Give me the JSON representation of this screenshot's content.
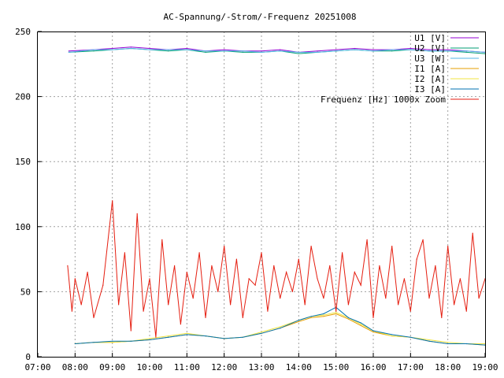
{
  "chart_data": {
    "type": "line",
    "title": "AC-Spannung/-Strom/-Frequenz 20251008",
    "xlabel": "",
    "ylabel": "",
    "xlim": [
      "07:00",
      "19:00"
    ],
    "ylim": [
      0,
      250
    ],
    "xticks": [
      "07:00",
      "08:00",
      "09:00",
      "10:00",
      "11:00",
      "12:00",
      "13:00",
      "14:00",
      "15:00",
      "16:00",
      "17:00",
      "18:00",
      "19:00"
    ],
    "yticks": [
      "0",
      "50",
      "100",
      "150",
      "200",
      "250"
    ],
    "grid": true,
    "legend_position": "top-right",
    "series": [
      {
        "name": "U1 [V]",
        "color": "#9400d3",
        "x": [
          "07:50",
          "08:30",
          "09:00",
          "09:30",
          "10:00",
          "10:30",
          "11:00",
          "11:30",
          "12:00",
          "12:30",
          "13:00",
          "13:30",
          "14:00",
          "14:30",
          "15:00",
          "15:30",
          "16:00",
          "16:30",
          "17:00",
          "17:30",
          "18:00",
          "18:30",
          "19:00"
        ],
        "values": [
          235,
          236,
          237,
          238,
          237,
          236,
          237,
          235,
          236,
          235,
          235,
          236,
          234,
          235,
          236,
          237,
          236,
          236,
          237,
          236,
          236,
          235,
          234
        ]
      },
      {
        "name": "U2 [V]",
        "color": "#009e73",
        "x": [
          "07:50",
          "08:30",
          "09:00",
          "09:30",
          "10:00",
          "10:30",
          "11:00",
          "11:30",
          "12:00",
          "12:30",
          "13:00",
          "13:30",
          "14:00",
          "14:30",
          "15:00",
          "15:30",
          "16:00",
          "16:30",
          "17:00",
          "17:30",
          "18:00",
          "18:30",
          "19:00"
        ],
        "values": [
          234,
          235,
          236,
          237,
          236,
          235,
          236,
          234,
          235,
          234,
          234,
          235,
          233,
          234,
          235,
          236,
          235,
          235,
          236,
          235,
          235,
          234,
          233
        ]
      },
      {
        "name": "U3 [W]",
        "color": "#56b4e9",
        "x": [
          "07:50",
          "08:30",
          "09:00",
          "09:30",
          "10:00",
          "10:30",
          "11:00",
          "11:30",
          "12:00",
          "12:30",
          "13:00",
          "13:30",
          "14:00",
          "14:30",
          "15:00",
          "15:30",
          "16:00",
          "16:30",
          "17:00",
          "17:30",
          "18:00",
          "18:30",
          "19:00"
        ],
        "values": [
          234,
          236,
          236,
          237,
          236,
          236,
          236,
          235,
          235,
          235,
          234,
          235,
          234,
          234,
          235,
          236,
          235,
          236,
          236,
          235,
          235,
          235,
          234
        ]
      },
      {
        "name": "I1 [A]",
        "color": "#e69f00",
        "x": [
          "08:00",
          "08:30",
          "09:00",
          "09:30",
          "10:00",
          "10:30",
          "11:00",
          "11:30",
          "12:00",
          "12:30",
          "13:00",
          "13:30",
          "14:00",
          "14:20",
          "14:40",
          "15:00",
          "15:20",
          "15:40",
          "16:00",
          "16:30",
          "17:00",
          "17:30",
          "18:00",
          "18:30",
          "19:00"
        ],
        "values": [
          10,
          11,
          11,
          12,
          13,
          15,
          17,
          16,
          14,
          15,
          18,
          22,
          27,
          30,
          31,
          33,
          29,
          24,
          19,
          16,
          15,
          12,
          10,
          10,
          9
        ]
      },
      {
        "name": "I2 [A]",
        "color": "#f0e442",
        "x": [
          "08:00",
          "08:30",
          "09:00",
          "09:30",
          "10:00",
          "10:30",
          "11:00",
          "11:30",
          "12:00",
          "12:30",
          "13:00",
          "13:30",
          "14:00",
          "14:20",
          "14:40",
          "15:00",
          "15:20",
          "15:40",
          "16:00",
          "16:30",
          "17:00",
          "17:30",
          "18:00",
          "18:30",
          "19:00"
        ],
        "values": [
          10,
          11,
          11,
          12,
          14,
          16,
          18,
          16,
          14,
          15,
          19,
          23,
          28,
          31,
          32,
          34,
          30,
          25,
          20,
          16,
          15,
          13,
          11,
          10,
          10
        ]
      },
      {
        "name": "I3 [A]",
        "color": "#0072b2",
        "x": [
          "08:00",
          "08:30",
          "09:00",
          "09:30",
          "10:00",
          "10:30",
          "11:00",
          "11:30",
          "12:00",
          "12:30",
          "13:00",
          "13:30",
          "14:00",
          "14:20",
          "14:40",
          "15:00",
          "15:20",
          "15:40",
          "16:00",
          "16:30",
          "17:00",
          "17:30",
          "18:00",
          "18:30",
          "19:00"
        ],
        "values": [
          10,
          11,
          12,
          12,
          13,
          15,
          17,
          16,
          14,
          15,
          18,
          22,
          28,
          31,
          33,
          38,
          30,
          26,
          20,
          17,
          15,
          12,
          10,
          10,
          9
        ]
      },
      {
        "name": "Frequenz [Hz] 1000x Zoom",
        "color": "#e51e10",
        "x": [
          "07:48",
          "07:55",
          "08:00",
          "08:10",
          "08:20",
          "08:30",
          "08:45",
          "09:00",
          "09:10",
          "09:20",
          "09:30",
          "09:40",
          "09:50",
          "10:00",
          "10:10",
          "10:20",
          "10:30",
          "10:40",
          "10:50",
          "11:00",
          "11:10",
          "11:20",
          "11:30",
          "11:40",
          "11:50",
          "12:00",
          "12:10",
          "12:20",
          "12:30",
          "12:40",
          "12:50",
          "13:00",
          "13:10",
          "13:20",
          "13:30",
          "13:40",
          "13:50",
          "14:00",
          "14:10",
          "14:20",
          "14:30",
          "14:40",
          "14:50",
          "15:00",
          "15:10",
          "15:20",
          "15:30",
          "15:40",
          "15:50",
          "16:00",
          "16:10",
          "16:20",
          "16:30",
          "16:40",
          "16:50",
          "17:00",
          "17:10",
          "17:20",
          "17:30",
          "17:40",
          "17:50",
          "18:00",
          "18:10",
          "18:20",
          "18:30",
          "18:40",
          "18:50",
          "19:00"
        ],
        "values": [
          70,
          35,
          60,
          40,
          65,
          30,
          55,
          120,
          40,
          80,
          20,
          110,
          35,
          60,
          15,
          90,
          40,
          70,
          25,
          65,
          45,
          80,
          30,
          70,
          50,
          85,
          40,
          75,
          30,
          60,
          55,
          80,
          35,
          70,
          45,
          65,
          50,
          75,
          40,
          85,
          60,
          45,
          70,
          35,
          80,
          40,
          65,
          55,
          90,
          30,
          70,
          45,
          85,
          40,
          60,
          35,
          75,
          90,
          45,
          70,
          30,
          85,
          40,
          60,
          35,
          95,
          45,
          60
        ]
      }
    ]
  }
}
